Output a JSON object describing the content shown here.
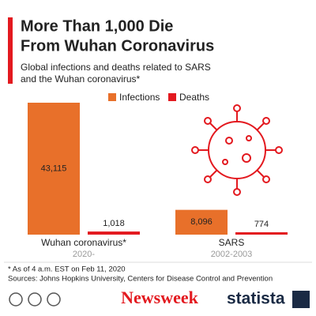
{
  "chart_data": {
    "type": "bar",
    "title": [
      "More Than 1,000 Die",
      "From Wuhan Coronavirus"
    ],
    "subtitle": [
      "Global infections and deaths related to SARS",
      "and the Wuhan coronavirus*"
    ],
    "categories": [
      "Wuhan coronavirus*",
      "SARS"
    ],
    "category_sublabels": [
      "2020-",
      "2002-2003"
    ],
    "series": [
      {
        "name": "Infections",
        "color": "#e8702a",
        "values": [
          43115,
          8096
        ],
        "value_labels": [
          "43,115",
          "8,096"
        ]
      },
      {
        "name": "Deaths",
        "color": "#e3191f",
        "values": [
          1018,
          774
        ],
        "value_labels": [
          "1,018",
          "774"
        ]
      }
    ],
    "notes": [
      "* As of 4 a.m. EST on Feb 11, 2020",
      "Sources: Johns Hopkins University, Centers for Disease Control and Prevention"
    ],
    "logos": [
      "Newsweek",
      "statista"
    ]
  }
}
